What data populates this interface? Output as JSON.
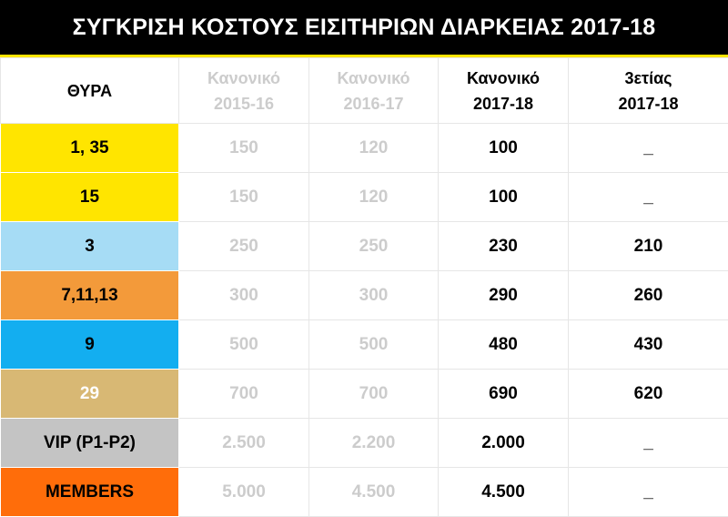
{
  "title": "ΣΥΓΚΡΙΣΗ ΚΟΣΤΟΥΣ ΕΙΣΙΤΗΡΙΩΝ ΔΙΑΡΚΕΙΑΣ 2017-18",
  "colors": {
    "title_bg": "#000000",
    "accent": "#ffe500",
    "muted_text": "#cccccc"
  },
  "header": {
    "gate": "ΘΥΡΑ",
    "col1": [
      "Κανονικό",
      "2015-16"
    ],
    "col2": [
      "Κανονικό",
      "2016-17"
    ],
    "col3": [
      "Κανονικό",
      "2017-18"
    ],
    "col4": [
      "3ετίας",
      "2017-18"
    ]
  },
  "rows": [
    {
      "gate": "1, 35",
      "color": "#ffe500",
      "text_color": "#000000",
      "v1": "150",
      "v2": "120",
      "v3": "100",
      "v4": "_"
    },
    {
      "gate": "15",
      "color": "#ffe500",
      "text_color": "#000000",
      "v1": "150",
      "v2": "120",
      "v3": "100",
      "v4": "_"
    },
    {
      "gate": "3",
      "color": "#a6dcf5",
      "text_color": "#000000",
      "v1": "250",
      "v2": "250",
      "v3": "230",
      "v4": "210"
    },
    {
      "gate": "7,11,13",
      "color": "#f39a3a",
      "text_color": "#000000",
      "v1": "300",
      "v2": "300",
      "v3": "290",
      "v4": "260"
    },
    {
      "gate": "9",
      "color": "#13aef0",
      "text_color": "#000000",
      "v1": "500",
      "v2": "500",
      "v3": "480",
      "v4": "430"
    },
    {
      "gate": "29",
      "color": "#d8b874",
      "text_color": "#ffffff",
      "v1": "700",
      "v2": "700",
      "v3": "690",
      "v4": "620"
    },
    {
      "gate": "VIP (P1-P2)",
      "color": "#c4c4c4",
      "text_color": "#000000",
      "v1": "2.500",
      "v2": "2.200",
      "v3": "2.000",
      "v4": "_"
    },
    {
      "gate": "MEMBERS",
      "color": "#ff6d0a",
      "text_color": "#000000",
      "v1": "5.000",
      "v2": "4.500",
      "v3": "4.500",
      "v4": "_"
    }
  ]
}
